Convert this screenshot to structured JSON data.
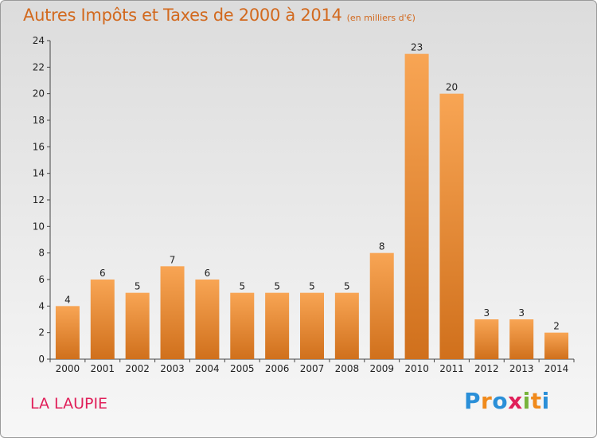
{
  "chart_data": {
    "type": "bar",
    "title": "Autres Impôts et Taxes de 2000 à 2014",
    "subtitle": "(en milliers d'€)",
    "categories": [
      "2000",
      "2001",
      "2002",
      "2003",
      "2004",
      "2005",
      "2006",
      "2007",
      "2008",
      "2009",
      "2010",
      "2011",
      "2012",
      "2013",
      "2014"
    ],
    "values": [
      4,
      6,
      5,
      7,
      6,
      5,
      5,
      5,
      5,
      8,
      23,
      20,
      3,
      3,
      2
    ],
    "ylim": [
      0,
      24
    ],
    "yticks": [
      0,
      2,
      4,
      6,
      8,
      10,
      12,
      14,
      16,
      18,
      20,
      22,
      24
    ],
    "grid": false,
    "legend": "none",
    "bar_color": "#f0913a"
  },
  "footer": {
    "location": "LA LAUPIE",
    "logo": "Proxiti"
  },
  "colors": {
    "title": "#d2691e",
    "location": "#e0205a",
    "logo": [
      "#2a8fd8",
      "#f08a1c",
      "#2a8fd8",
      "#e0205a",
      "#78b43c",
      "#f08a1c",
      "#2a8fd8"
    ]
  }
}
